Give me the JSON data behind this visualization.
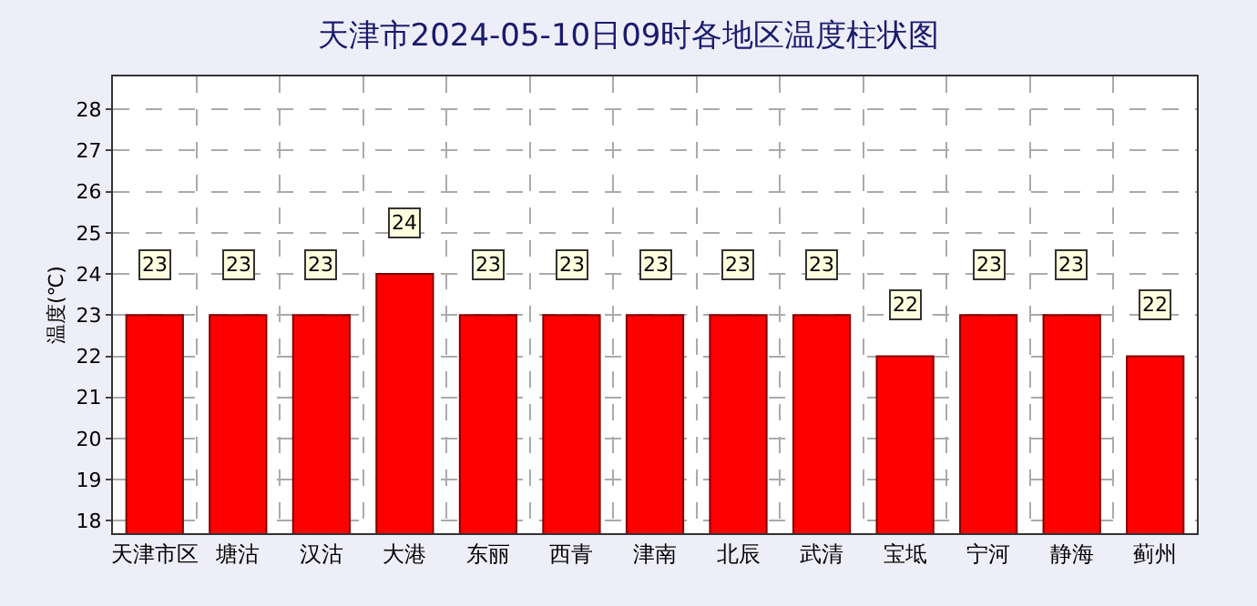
{
  "chart_data": {
    "type": "bar",
    "title": "天津市2024-05-10日09时各地区温度柱状图",
    "ylabel": "温度(℃)",
    "categories": [
      "天津市区",
      "塘沽",
      "汉沽",
      "大港",
      "东丽",
      "西青",
      "津南",
      "北辰",
      "武清",
      "宝坻",
      "宁河",
      "静海",
      "蓟州"
    ],
    "values": [
      23,
      23,
      23,
      24,
      23,
      23,
      23,
      23,
      23,
      22,
      23,
      23,
      22
    ],
    "color": "#ff0000",
    "ylim": [
      17.7,
      28.8
    ],
    "yticks": [
      18,
      19,
      20,
      21,
      22,
      23,
      24,
      25,
      26,
      27,
      28
    ],
    "grid": true,
    "data_labels": true
  }
}
